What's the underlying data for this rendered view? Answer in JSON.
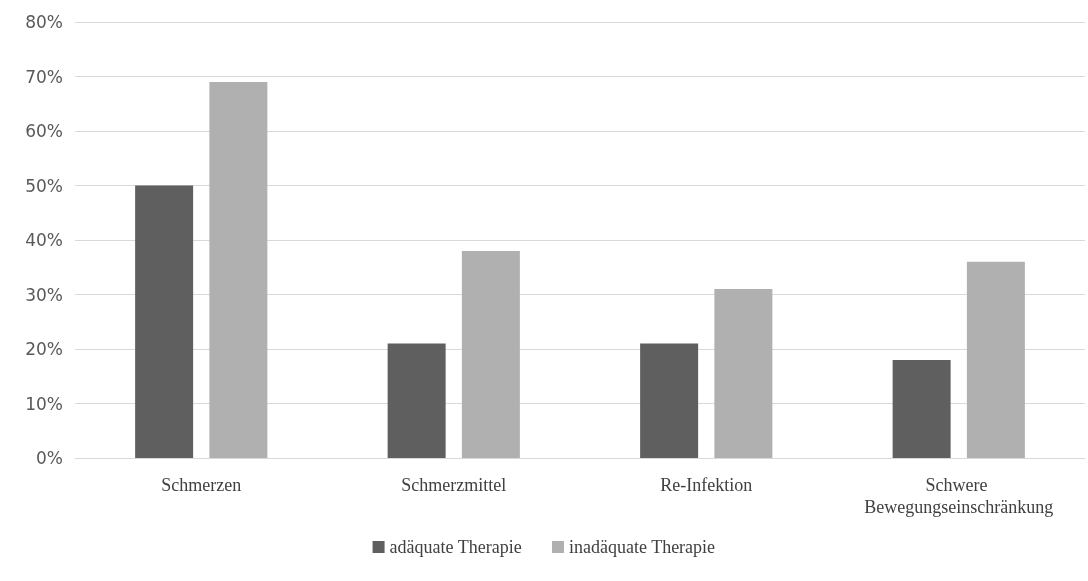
{
  "chart_data": {
    "type": "bar",
    "categories": [
      "Schmerzen",
      "Schmerzmittel",
      "Re-Infektion",
      "Schwere Bewegungseinschränkung"
    ],
    "series": [
      {
        "name": "adäquate Therapie",
        "color": "#5f5f5f",
        "values": [
          50,
          21,
          21,
          18
        ]
      },
      {
        "name": "inadäquate Therapie",
        "color": "#b0b0b0",
        "values": [
          69,
          38,
          31,
          36
        ]
      }
    ],
    "ylim": [
      0,
      80
    ],
    "yticks": [
      {
        "value": 0,
        "label": "0%"
      },
      {
        "value": 10,
        "label": "10%"
      },
      {
        "value": 20,
        "label": "20%"
      },
      {
        "value": 30,
        "label": "30%"
      },
      {
        "value": 40,
        "label": "40%"
      },
      {
        "value": 50,
        "label": "50%"
      },
      {
        "value": 60,
        "label": "60%"
      },
      {
        "value": 70,
        "label": "70%"
      },
      {
        "value": 80,
        "label": "80%"
      }
    ],
    "grid": "y",
    "legend": "bottom"
  }
}
